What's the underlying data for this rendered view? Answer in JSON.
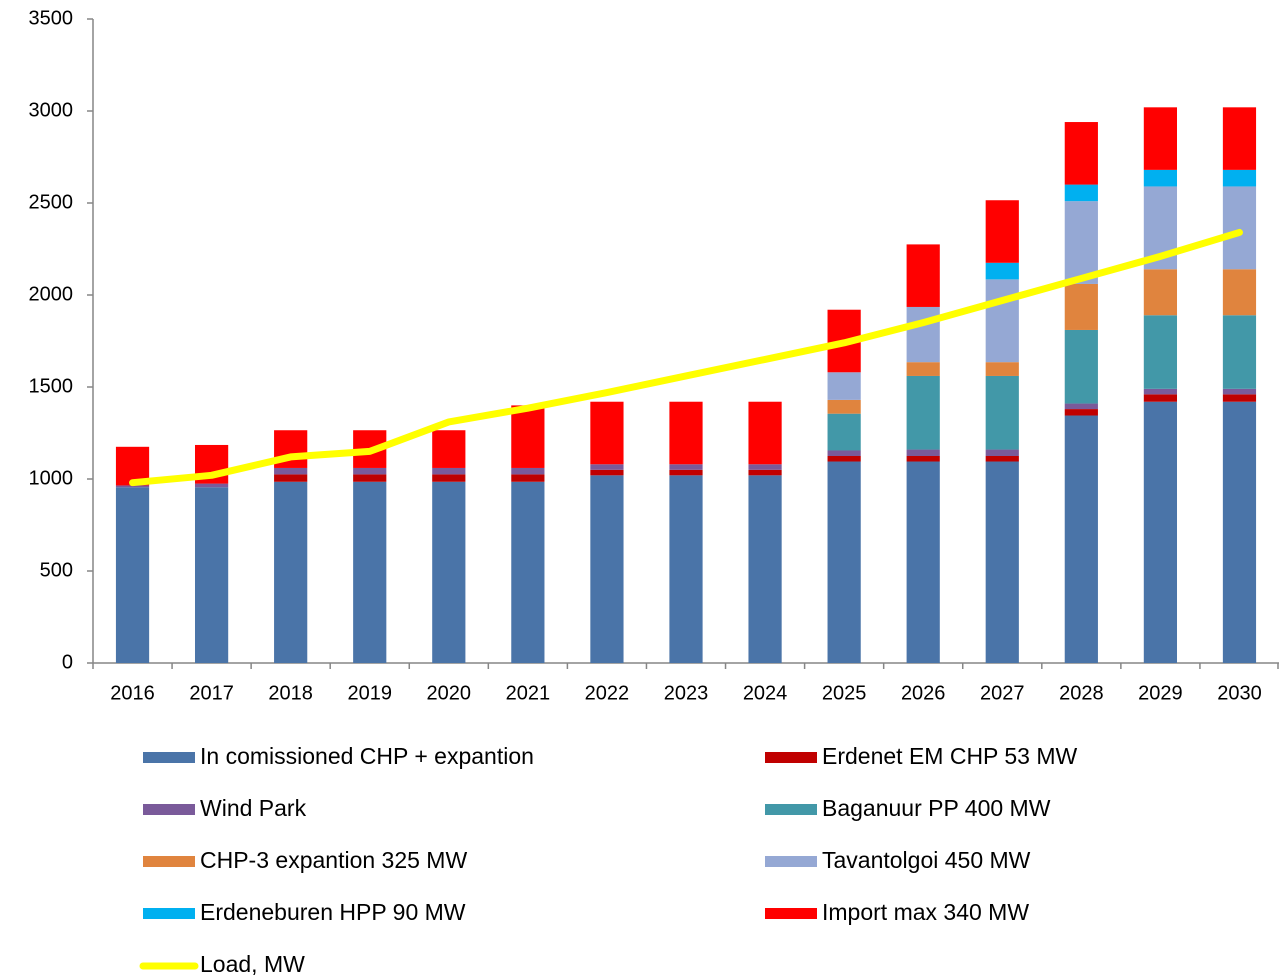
{
  "chart_data": {
    "type": "bar",
    "stacked": true,
    "categories": [
      "2016",
      "2017",
      "2018",
      "2019",
      "2020",
      "2021",
      "2022",
      "2023",
      "2024",
      "2025",
      "2026",
      "2027",
      "2028",
      "2029",
      "2030"
    ],
    "series": [
      {
        "name": "In comissioned CHP + expantion",
        "color": "#4a74a8",
        "values": [
          955,
          955,
          985,
          985,
          985,
          985,
          1020,
          1020,
          1020,
          1095,
          1095,
          1095,
          1345,
          1420,
          1420
        ]
      },
      {
        "name": "Erdenet  EM CHP 53 MW",
        "color": "#c00000",
        "values": [
          0,
          0,
          40,
          40,
          40,
          40,
          30,
          30,
          30,
          30,
          30,
          30,
          35,
          40,
          40
        ]
      },
      {
        "name": "Wind Park",
        "color": "#7a5a9a",
        "values": [
          10,
          20,
          35,
          35,
          35,
          35,
          30,
          30,
          30,
          30,
          35,
          35,
          30,
          30,
          30
        ]
      },
      {
        "name": "Baganuur PP 400 MW",
        "color": "#4298a8",
        "values": [
          0,
          0,
          0,
          0,
          0,
          0,
          0,
          0,
          0,
          200,
          400,
          400,
          400,
          400,
          400
        ]
      },
      {
        "name": "CHP-3 expantion 325 MW",
        "color": "#e0843e",
        "values": [
          0,
          0,
          0,
          0,
          0,
          0,
          0,
          0,
          0,
          75,
          75,
          75,
          250,
          250,
          250
        ]
      },
      {
        "name": "Tavantolgoi 450 MW",
        "color": "#95a8d4",
        "values": [
          0,
          0,
          0,
          0,
          0,
          0,
          0,
          0,
          0,
          150,
          300,
          450,
          450,
          450,
          450
        ]
      },
      {
        "name": "Erdeneburen HPP 90 MW",
        "color": "#00b0f0",
        "values": [
          0,
          0,
          0,
          0,
          0,
          0,
          0,
          0,
          0,
          0,
          0,
          90,
          90,
          90,
          90
        ]
      },
      {
        "name": "Import max 340 MW",
        "color": "#ff0000",
        "values": [
          210,
          210,
          205,
          205,
          205,
          340,
          340,
          340,
          340,
          340,
          340,
          340,
          340,
          340,
          340
        ]
      },
      {
        "name": "Load, MW",
        "color": "#ffff00",
        "type": "line",
        "values": [
          980,
          1020,
          1120,
          1150,
          1310,
          1385,
          1470,
          1560,
          1650,
          1740,
          1850,
          1970,
          2090,
          2210,
          2340
        ]
      }
    ],
    "ylim": [
      0,
      3500
    ],
    "yticks": [
      0,
      500,
      1000,
      1500,
      2000,
      2500,
      3000,
      3500
    ]
  }
}
